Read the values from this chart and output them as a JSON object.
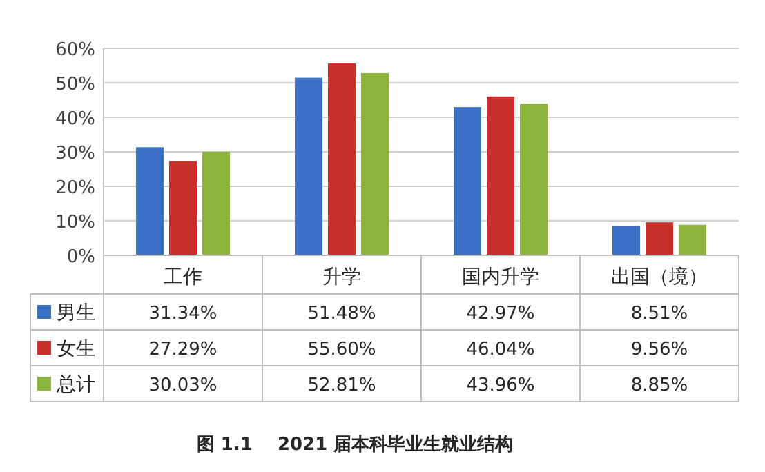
{
  "chart_data": {
    "type": "bar",
    "title": "图 1.1    2021 届本科毕业生就业结构",
    "categories": [
      "工作",
      "升学",
      "国内升学",
      "出国（境）"
    ],
    "series": [
      {
        "name": "男生",
        "color": "#3a6fc4",
        "values": [
          31.34,
          51.48,
          42.97,
          8.51
        ],
        "value_labels": [
          "31.34%",
          "51.48%",
          "42.97%",
          "8.51%"
        ]
      },
      {
        "name": "女生",
        "color": "#c9302c",
        "values": [
          27.29,
          55.6,
          46.04,
          9.56
        ],
        "value_labels": [
          "27.29%",
          "55.60%",
          "46.04%",
          "9.56%"
        ]
      },
      {
        "name": "总计",
        "color": "#8cb43c",
        "values": [
          30.03,
          52.81,
          43.96,
          8.85
        ],
        "value_labels": [
          "30.03%",
          "52.81%",
          "43.96%",
          "8.85%"
        ]
      }
    ],
    "ylim": [
      0,
      60
    ],
    "yticks": [
      {
        "value": 0,
        "label": "0%"
      },
      {
        "value": 10,
        "label": "10%"
      },
      {
        "value": 20,
        "label": "20%"
      },
      {
        "value": 30,
        "label": "30%"
      },
      {
        "value": 40,
        "label": "40%"
      },
      {
        "value": 50,
        "label": "50%"
      },
      {
        "value": 60,
        "label": "60%"
      }
    ],
    "grid": "y",
    "legend": "bottom"
  }
}
